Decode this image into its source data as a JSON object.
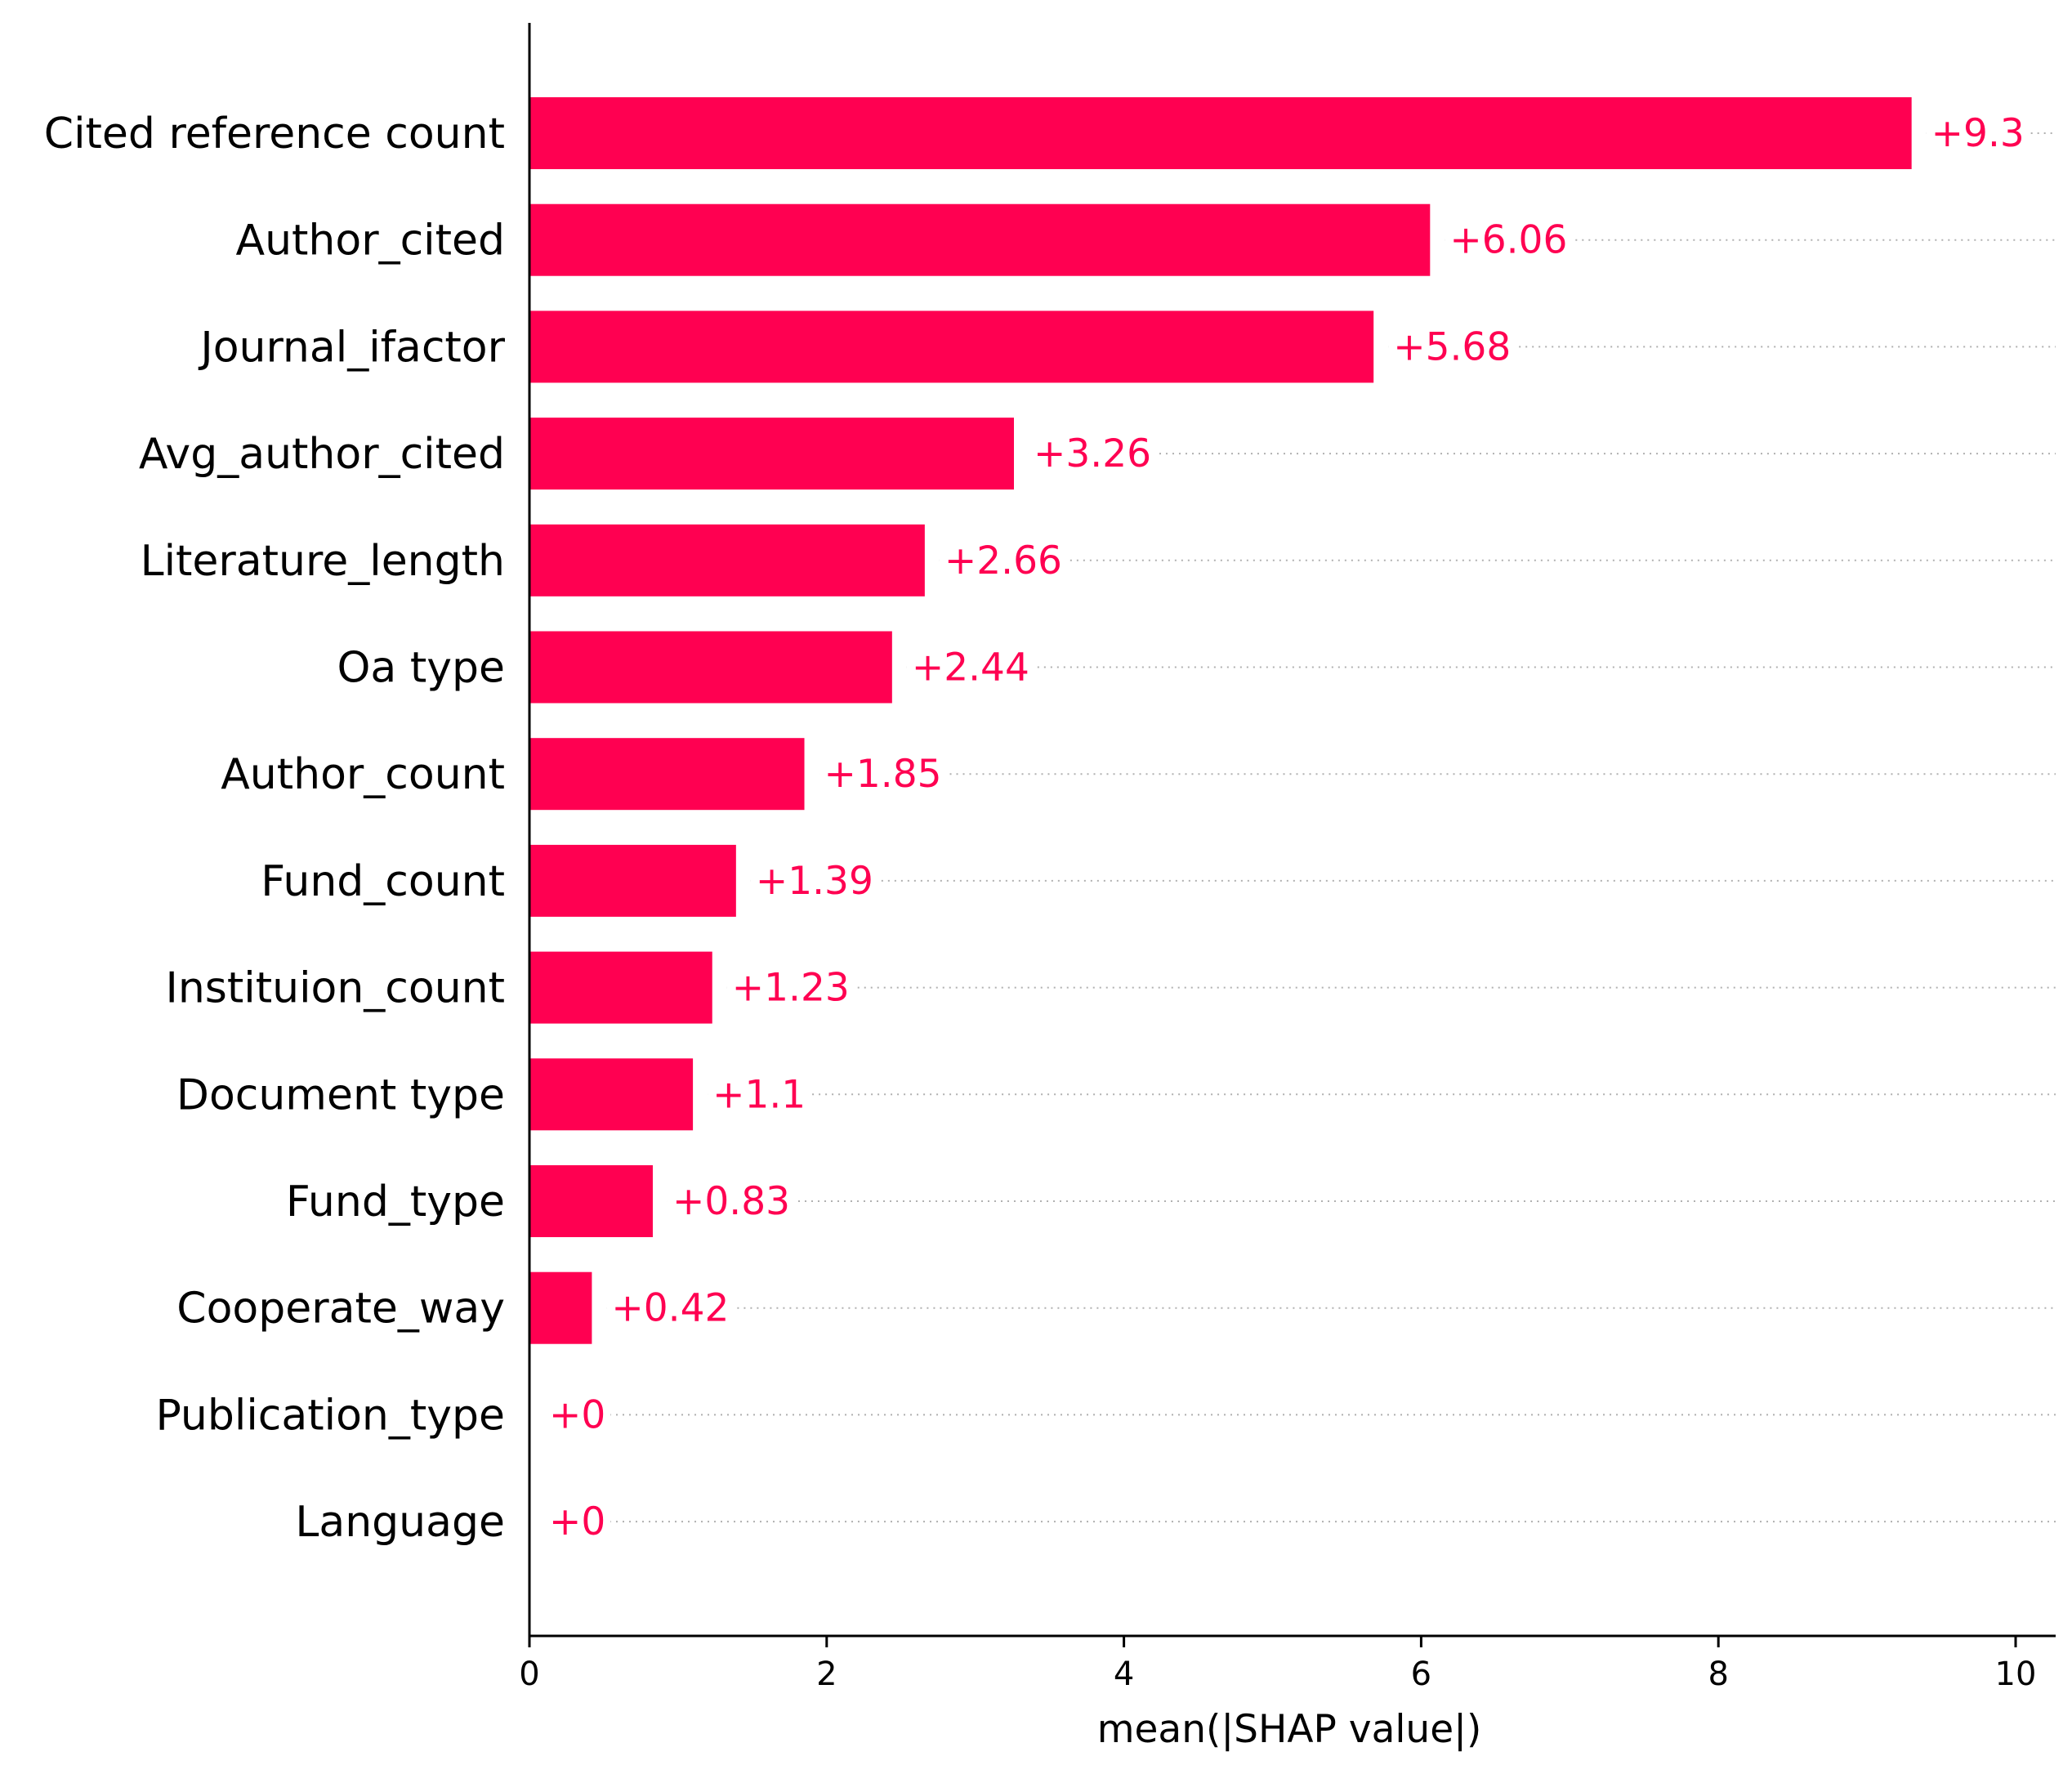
{
  "chart_data": {
    "type": "bar",
    "orientation": "horizontal",
    "xlabel": "mean(|SHAP value|)",
    "ylabel": "",
    "title": "",
    "xlim": [
      0,
      10.25
    ],
    "xticks": [
      0,
      2,
      4,
      6,
      8,
      10
    ],
    "grid": "dotted guide lines per bar",
    "colors": {
      "bar": "#ff0051",
      "value_label": "#ff0051",
      "guide_line": "#b0b0b0",
      "axis": "#000000"
    },
    "categories": [
      "Cited reference count",
      "Author_cited",
      "Journal_ifactor",
      "Avg_author_cited",
      "Literature_length",
      "Oa type",
      "Author_count",
      "Fund_count",
      "Instituion_count",
      "Document type",
      "Fund_type",
      "Cooperate_way",
      "Publication_type",
      "Language"
    ],
    "values": [
      9.3,
      6.06,
      5.68,
      3.26,
      2.66,
      2.44,
      1.85,
      1.39,
      1.23,
      1.1,
      0.83,
      0.42,
      0,
      0
    ],
    "value_labels": [
      "+9.3",
      "+6.06",
      "+5.68",
      "+3.26",
      "+2.66",
      "+2.44",
      "+1.85",
      "+1.39",
      "+1.23",
      "+1.1",
      "+0.83",
      "+0.42",
      "+0",
      "+0"
    ]
  }
}
